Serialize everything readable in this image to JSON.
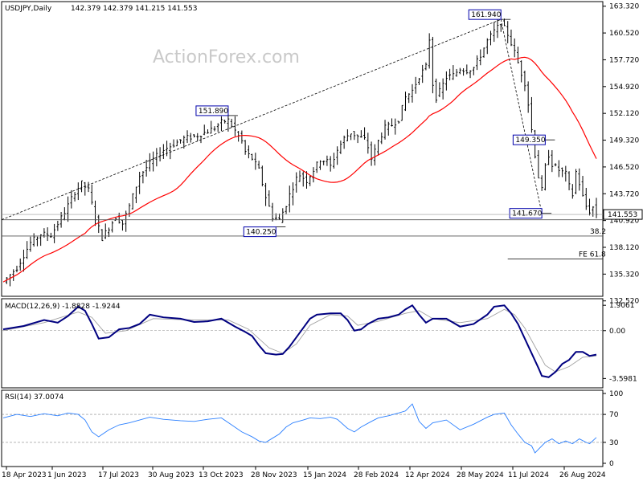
{
  "header": {
    "symbol": "USDJPY,Daily",
    "ohlc": "142.379 142.379 141.215 141.553"
  },
  "watermark": "ActionForex.com",
  "chart_data": [
    {
      "type": "candlestick",
      "symbol": "USDJPY",
      "timeframe": "Daily",
      "ylim": [
        133.0,
        163.8
      ],
      "yticks": [
        "163.320",
        "160.520",
        "157.720",
        "154.920",
        "152.120",
        "149.320",
        "146.520",
        "143.720",
        "140.920",
        "138.120",
        "135.320",
        "132.520"
      ],
      "xticks": [
        "18 Apr 2023",
        "1 Jun 2023",
        "17 Jul 2023",
        "30 Aug 2023",
        "13 Oct 2023",
        "28 Nov 2023",
        "15 Jan 2024",
        "28 Feb 2024",
        "12 Apr 2024",
        "28 May 2024",
        "11 Jul 2024",
        "26 Aug 2024"
      ],
      "current_price": "141.553",
      "close_path": [
        [
          0,
          134.5
        ],
        [
          4,
          136.0
        ],
        [
          8,
          138.6
        ],
        [
          11,
          139.5
        ],
        [
          14,
          139.4
        ],
        [
          18,
          141.8
        ],
        [
          21,
          143.9
        ],
        [
          23,
          144.8
        ],
        [
          25,
          144.1
        ],
        [
          27,
          141.2
        ],
        [
          29,
          139.1
        ],
        [
          31,
          140.2
        ],
        [
          33,
          141.3
        ],
        [
          35,
          140.6
        ],
        [
          37,
          142.4
        ],
        [
          40,
          145.6
        ],
        [
          44,
          147.3
        ],
        [
          47,
          148.3
        ],
        [
          50,
          148.9
        ],
        [
          53,
          149.5
        ],
        [
          56,
          149.7
        ],
        [
          59,
          150.1
        ],
        [
          62,
          150.6
        ],
        [
          64,
          151.2
        ],
        [
          66,
          151.4
        ],
        [
          68,
          150.3
        ],
        [
          70,
          149.2
        ],
        [
          71,
          148.1
        ],
        [
          73,
          147.4
        ],
        [
          75,
          146.2
        ],
        [
          77,
          143.4
        ],
        [
          79,
          141.3
        ],
        [
          81,
          141.0
        ],
        [
          83,
          142.6
        ],
        [
          84,
          143.6
        ],
        [
          86,
          145.3
        ],
        [
          87,
          145.7
        ],
        [
          89,
          145.1
        ],
        [
          91,
          146.2
        ],
        [
          93,
          147.3
        ],
        [
          95,
          147.1
        ],
        [
          96,
          146.6
        ],
        [
          98,
          148.3
        ],
        [
          100,
          149.5
        ],
        [
          102,
          150.1
        ],
        [
          104,
          149.7
        ],
        [
          106,
          149.4
        ],
        [
          107,
          148.6
        ],
        [
          108,
          147.4
        ],
        [
          109,
          148.2
        ],
        [
          110,
          149.2
        ],
        [
          112,
          150.6
        ],
        [
          114,
          150.9
        ],
        [
          116,
          151.5
        ],
        [
          118,
          153.8
        ],
        [
          120,
          154.5
        ],
        [
          122,
          156.0
        ],
        [
          124,
          157.0
        ],
        [
          125,
          159.9
        ],
        [
          126,
          155.2
        ],
        [
          127,
          153.8
        ],
        [
          128,
          154.4
        ],
        [
          130,
          155.9
        ],
        [
          132,
          156.1
        ],
        [
          134,
          156.8
        ],
        [
          136,
          156.6
        ],
        [
          138,
          156.9
        ],
        [
          140,
          158.2
        ],
        [
          142,
          159.7
        ],
        [
          144,
          160.7
        ],
        [
          146,
          161.5
        ],
        [
          147,
          161.0
        ],
        [
          148,
          160.4
        ],
        [
          150,
          158.5
        ],
        [
          152,
          156.3
        ],
        [
          153,
          155.3
        ],
        [
          154,
          153.1
        ],
        [
          155,
          150.4
        ],
        [
          156,
          147.8
        ],
        [
          157,
          145.5
        ],
        [
          158,
          144.1
        ],
        [
          159,
          146.5
        ],
        [
          160,
          147.8
        ],
        [
          161,
          146.8
        ],
        [
          163,
          146.2
        ],
        [
          165,
          145.8
        ],
        [
          166,
          144.5
        ],
        [
          167,
          143.6
        ],
        [
          168,
          146.0
        ],
        [
          169,
          144.8
        ],
        [
          170,
          143.4
        ],
        [
          171,
          142.4
        ],
        [
          172,
          141.9
        ],
        [
          173,
          142.3
        ],
        [
          174,
          141.6
        ]
      ],
      "overlays": [
        {
          "kind": "moving-average",
          "color": "#ff0000"
        },
        {
          "kind": "support-line",
          "value": 141.0
        },
        {
          "kind": "support-line",
          "value": 139.3
        },
        {
          "kind": "channel-line",
          "style": "dashed"
        },
        {
          "kind": "line",
          "label": "FE 61.8",
          "value": 136.9
        }
      ],
      "annotations": [
        {
          "label": "151.890",
          "value": 151.89
        },
        {
          "label": "140.250",
          "value": 140.25
        },
        {
          "label": "161.940",
          "value": 161.94
        },
        {
          "label": "149.350",
          "value": 149.35
        },
        {
          "label": "141.670",
          "value": 141.67
        },
        {
          "label": "38.2",
          "value": 139.3
        }
      ],
      "colors": {
        "candles": "#000000",
        "ma": "#ff0000",
        "h_line": "#555555",
        "label_border": "#0000aa",
        "label_fill": "#ffffff"
      }
    },
    {
      "type": "line",
      "title": "MACD(12,26,9) -1.8828 -1.9244",
      "ylim": [
        -4.3,
        2.4
      ],
      "yticks": [
        "1.9061",
        "0.00",
        "-3.5981"
      ],
      "series": [
        {
          "color": "#000080",
          "points": [
            [
              0,
              0.1
            ],
            [
              6,
              0.35
            ],
            [
              12,
              0.8
            ],
            [
              16,
              0.6
            ],
            [
              19,
              1.1
            ],
            [
              22,
              1.8
            ],
            [
              24,
              1.5
            ],
            [
              26,
              0.5
            ],
            [
              28,
              -0.6
            ],
            [
              31,
              -0.5
            ],
            [
              34,
              0.1
            ],
            [
              37,
              0.2
            ],
            [
              40,
              0.5
            ],
            [
              43,
              1.2
            ],
            [
              47,
              1.0
            ],
            [
              52,
              0.9
            ],
            [
              56,
              0.65
            ],
            [
              60,
              0.7
            ],
            [
              64,
              0.9
            ],
            [
              68,
              0.3
            ],
            [
              71,
              -0.1
            ],
            [
              73,
              -0.4
            ],
            [
              75,
              -1.1
            ],
            [
              77,
              -1.7
            ],
            [
              80,
              -1.8
            ],
            [
              82,
              -1.75
            ],
            [
              84,
              -1.2
            ],
            [
              86,
              -0.5
            ],
            [
              88,
              0.2
            ],
            [
              90,
              0.9
            ],
            [
              92,
              1.2
            ],
            [
              96,
              1.3
            ],
            [
              99,
              1.3
            ],
            [
              101,
              0.8
            ],
            [
              103,
              0.0
            ],
            [
              105,
              0.1
            ],
            [
              107,
              0.5
            ],
            [
              110,
              0.9
            ],
            [
              113,
              1.0
            ],
            [
              116,
              1.2
            ],
            [
              118,
              1.6
            ],
            [
              120,
              1.9
            ],
            [
              122,
              1.2
            ],
            [
              124,
              0.6
            ],
            [
              126,
              0.9
            ],
            [
              130,
              0.9
            ],
            [
              134,
              0.3
            ],
            [
              138,
              0.5
            ],
            [
              142,
              1.2
            ],
            [
              144,
              1.8
            ],
            [
              147,
              1.9
            ],
            [
              149,
              1.3
            ],
            [
              151,
              0.5
            ],
            [
              153,
              -0.6
            ],
            [
              155,
              -1.7
            ],
            [
              157,
              -2.8
            ],
            [
              158,
              -3.4
            ],
            [
              160,
              -3.5
            ],
            [
              162,
              -3.1
            ],
            [
              164,
              -2.5
            ],
            [
              166,
              -2.2
            ],
            [
              168,
              -1.6
            ],
            [
              170,
              -1.6
            ],
            [
              172,
              -1.9
            ],
            [
              174,
              -1.8
            ]
          ]
        },
        {
          "color": "#a0a0a0",
          "points": [
            [
              0,
              0.0
            ],
            [
              12,
              0.6
            ],
            [
              22,
              1.4
            ],
            [
              26,
              1.0
            ],
            [
              30,
              -0.2
            ],
            [
              36,
              0.0
            ],
            [
              44,
              0.9
            ],
            [
              56,
              0.8
            ],
            [
              66,
              0.8
            ],
            [
              72,
              0.1
            ],
            [
              78,
              -1.3
            ],
            [
              82,
              -1.7
            ],
            [
              86,
              -1.0
            ],
            [
              90,
              0.4
            ],
            [
              96,
              1.2
            ],
            [
              101,
              1.1
            ],
            [
              104,
              0.4
            ],
            [
              110,
              0.7
            ],
            [
              118,
              1.3
            ],
            [
              122,
              1.5
            ],
            [
              126,
              0.9
            ],
            [
              134,
              0.6
            ],
            [
              142,
              0.9
            ],
            [
              147,
              1.6
            ],
            [
              150,
              1.2
            ],
            [
              153,
              0.2
            ],
            [
              156,
              -1.2
            ],
            [
              159,
              -2.6
            ],
            [
              162,
              -3.1
            ],
            [
              166,
              -2.7
            ],
            [
              170,
              -2.0
            ],
            [
              174,
              -1.9
            ]
          ]
        }
      ]
    },
    {
      "type": "line",
      "title": "RSI(14) 37.0074",
      "ylim": [
        0,
        100
      ],
      "yticks": [
        "100",
        "70",
        "30",
        "0"
      ],
      "series": [
        {
          "color": "#2a7fff",
          "points": [
            [
              0,
              65
            ],
            [
              4,
              70
            ],
            [
              8,
              67
            ],
            [
              12,
              71
            ],
            [
              16,
              68
            ],
            [
              19,
              72
            ],
            [
              22,
              70
            ],
            [
              24,
              62
            ],
            [
              26,
              45
            ],
            [
              28,
              38
            ],
            [
              31,
              48
            ],
            [
              34,
              55
            ],
            [
              37,
              58
            ],
            [
              40,
              62
            ],
            [
              43,
              66
            ],
            [
              47,
              63
            ],
            [
              52,
              61
            ],
            [
              56,
              60
            ],
            [
              60,
              63
            ],
            [
              64,
              65
            ],
            [
              67,
              55
            ],
            [
              70,
              45
            ],
            [
              73,
              38
            ],
            [
              75,
              32
            ],
            [
              77,
              30
            ],
            [
              79,
              36
            ],
            [
              81,
              42
            ],
            [
              83,
              52
            ],
            [
              85,
              58
            ],
            [
              88,
              62
            ],
            [
              90,
              65
            ],
            [
              93,
              64
            ],
            [
              96,
              66
            ],
            [
              98,
              63
            ],
            [
              101,
              50
            ],
            [
              103,
              45
            ],
            [
              105,
              52
            ],
            [
              108,
              60
            ],
            [
              110,
              65
            ],
            [
              113,
              68
            ],
            [
              116,
              72
            ],
            [
              118,
              75
            ],
            [
              120,
              85
            ],
            [
              122,
              60
            ],
            [
              124,
              50
            ],
            [
              126,
              58
            ],
            [
              130,
              62
            ],
            [
              134,
              48
            ],
            [
              138,
              56
            ],
            [
              142,
              66
            ],
            [
              144,
              70
            ],
            [
              147,
              72
            ],
            [
              149,
              55
            ],
            [
              151,
              42
            ],
            [
              153,
              30
            ],
            [
              155,
              25
            ],
            [
              156,
              15
            ],
            [
              157,
              20
            ],
            [
              159,
              30
            ],
            [
              161,
              35
            ],
            [
              163,
              28
            ],
            [
              165,
              32
            ],
            [
              167,
              28
            ],
            [
              169,
              35
            ],
            [
              171,
              30
            ],
            [
              172,
              28
            ],
            [
              174,
              37
            ]
          ]
        }
      ]
    }
  ]
}
